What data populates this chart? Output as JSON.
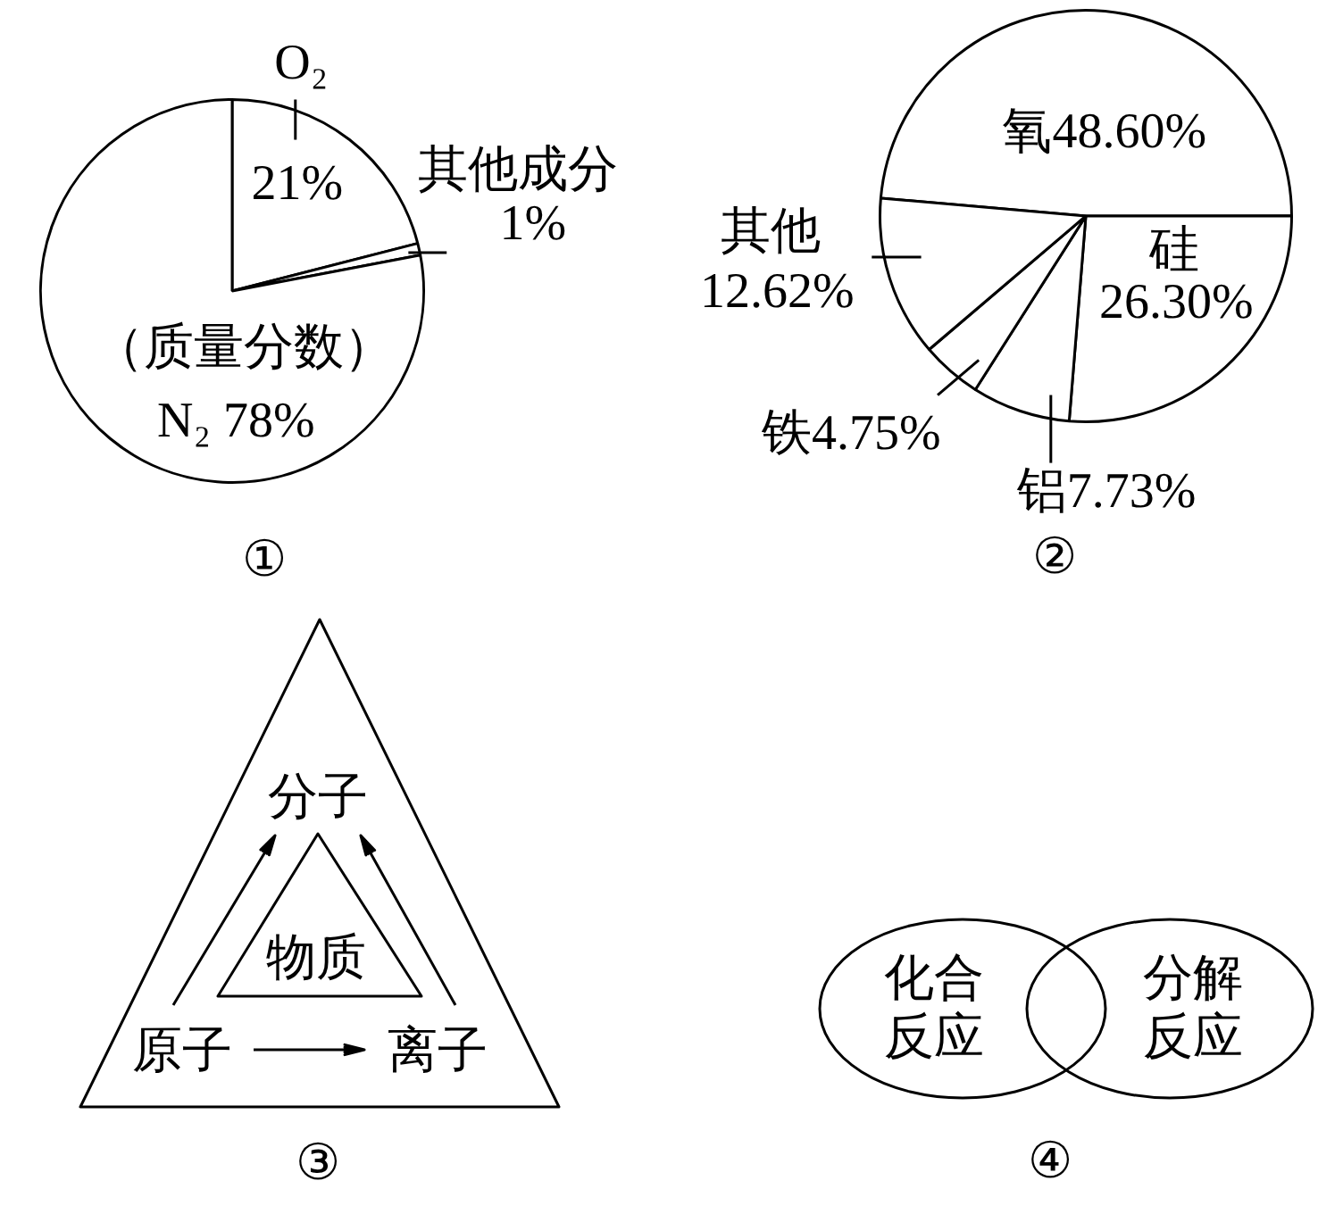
{
  "chart_data": [
    {
      "type": "pie",
      "title": "①",
      "categories": [
        "O₂",
        "其他成分",
        "N₂"
      ],
      "values": [
        21,
        1,
        78
      ],
      "colors": [
        "#ffffff",
        "#ffffff",
        "#ffffff"
      ],
      "value_labels": [
        "21%",
        "1%",
        "78%"
      ],
      "annotations": [
        "（质量分数）"
      ]
    },
    {
      "type": "pie",
      "title": "②",
      "categories": [
        "氧",
        "硅",
        "铝",
        "铁",
        "其他"
      ],
      "values": [
        48.6,
        26.3,
        7.73,
        4.75,
        12.62
      ],
      "colors": [
        "#ffffff",
        "#ffffff",
        "#ffffff",
        "#ffffff",
        "#ffffff"
      ],
      "value_labels": [
        "48.60%",
        "26.30%",
        "7.73%",
        "4.75%",
        "12.62%"
      ]
    },
    {
      "type": "other",
      "title": "③",
      "annotations": [
        "分子",
        "物质",
        "原子",
        "离子"
      ]
    },
    {
      "type": "other",
      "title": "④",
      "annotations": [
        "化合反应",
        "分解反应"
      ]
    }
  ]
}
